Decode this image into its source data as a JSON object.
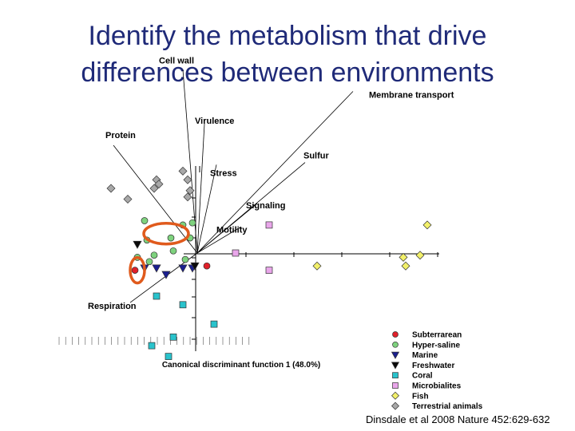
{
  "title_lines": [
    "Identify the metabolism that drive",
    "differences between environments"
  ],
  "citation": "Dinsdale et al 2008 Nature 452:629-632",
  "chart_data": {
    "type": "scatter",
    "xlabel": "Canonical discriminant function 1 (48.0%)",
    "ylabel": "",
    "xlim": [
      -4,
      12
    ],
    "ylim": [
      -6,
      5
    ],
    "grid": false,
    "legend_position": "bottom-right",
    "series": [
      {
        "name": "Subterrarean",
        "color": "#e0202a",
        "marker": "circle",
        "points": [
          [
            -2.6,
            -0.8
          ],
          [
            0.4,
            -0.6
          ]
        ]
      },
      {
        "name": "Hyper-saline",
        "color": "#7ed27e",
        "marker": "circle",
        "points": [
          [
            -2.2,
            1.5
          ],
          [
            -2.1,
            0.6
          ],
          [
            -1.8,
            -0.1
          ],
          [
            -2.0,
            -0.4
          ],
          [
            -1.1,
            0.7
          ],
          [
            -1.0,
            0.1
          ],
          [
            -0.6,
            1.3
          ],
          [
            -0.5,
            -0.3
          ],
          [
            -0.3,
            0.7
          ],
          [
            -0.2,
            1.4
          ],
          [
            -2.5,
            -0.2
          ]
        ]
      },
      {
        "name": "Marine",
        "color": "#1a1f8f",
        "marker": "triangle-down",
        "points": [
          [
            -2.2,
            -0.7
          ],
          [
            -1.7,
            -0.7
          ],
          [
            -1.3,
            -1.0
          ],
          [
            -0.6,
            -0.7
          ],
          [
            -0.2,
            -0.7
          ]
        ]
      },
      {
        "name": "Freshwater",
        "color": "#0a0a0a",
        "marker": "triangle-down",
        "points": [
          [
            -2.5,
            0.4
          ],
          [
            -0.1,
            -0.6
          ]
        ]
      },
      {
        "name": "Coral",
        "color": "#29c3cc",
        "marker": "square",
        "points": [
          [
            -1.7,
            -2.0
          ],
          [
            -0.6,
            -2.4
          ],
          [
            0.7,
            -3.3
          ],
          [
            -1.0,
            -3.9
          ],
          [
            -1.9,
            -4.3
          ],
          [
            -1.2,
            -4.8
          ]
        ]
      },
      {
        "name": "Microbialites",
        "color": "#e9a6ea",
        "marker": "square",
        "points": [
          [
            3.0,
            1.3
          ],
          [
            1.6,
            0.0
          ],
          [
            3.0,
            -0.8
          ]
        ]
      },
      {
        "name": "Fish",
        "color": "#f2f06a",
        "marker": "diamond",
        "points": [
          [
            8.7,
            -0.6
          ],
          [
            8.6,
            -0.2
          ],
          [
            9.3,
            -0.1
          ],
          [
            9.6,
            1.3
          ],
          [
            5.0,
            -0.6
          ]
        ]
      },
      {
        "name": "Terrestrial animals",
        "color": "#a8a8a8",
        "marker": "diamond",
        "points": [
          [
            -3.6,
            3.0
          ],
          [
            -1.7,
            3.4
          ],
          [
            -1.6,
            3.2
          ],
          [
            -1.8,
            3.0
          ],
          [
            -0.4,
            3.4
          ],
          [
            -0.3,
            2.9
          ],
          [
            -0.4,
            2.6
          ],
          [
            -2.9,
            2.5
          ],
          [
            -0.6,
            3.8
          ]
        ]
      }
    ],
    "vectors": [
      {
        "label": "Cell wall",
        "x": -0.6,
        "y": 8.5
      },
      {
        "label": "Membrane transport",
        "x": 6.5,
        "y": 7.5
      },
      {
        "label": "Virulence",
        "x": 0.3,
        "y": 6.0
      },
      {
        "label": "Protein",
        "x": -3.5,
        "y": 5.0
      },
      {
        "label": "Stress",
        "x": 0.8,
        "y": 4.1
      },
      {
        "label": "Sulfur",
        "x": 4.5,
        "y": 4.2
      },
      {
        "label": "Signaling",
        "x": 2.5,
        "y": 2.3
      },
      {
        "label": "Motility",
        "x": 1.8,
        "y": 1.2
      },
      {
        "label": "Respiration",
        "x": -2.8,
        "y": -2.3
      }
    ],
    "highlights": [
      {
        "marker": "ellipse",
        "color": "#e05a1c",
        "x": -1.3,
        "y": 0.9
      },
      {
        "marker": "ellipse",
        "color": "#e05a1c",
        "x": -2.5,
        "y": -0.8
      }
    ]
  }
}
